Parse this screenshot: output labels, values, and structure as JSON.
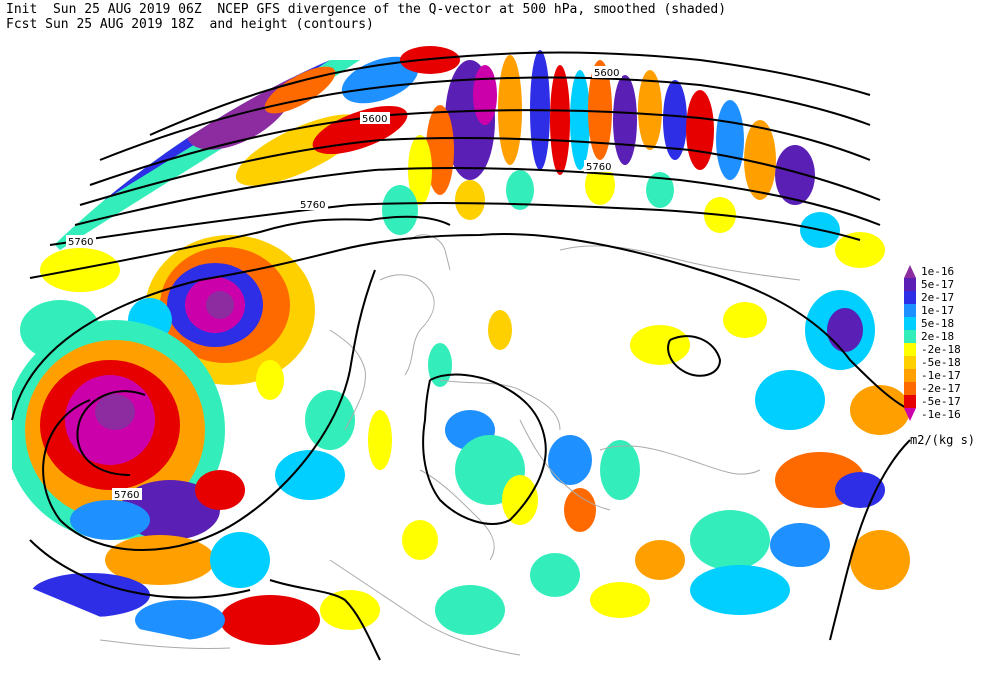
{
  "header": {
    "line1": "Init  Sun 25 AUG 2019 06Z  NCEP GFS divergence of the Q-vector at 500 hPa, smoothed (shaded)",
    "line2": "Fcst Sun 25 AUG 2019 18Z  and height (contours)"
  },
  "contour_labels": [
    "5600",
    "5600",
    "5760",
    "5760",
    "5760",
    "5760"
  ],
  "legend": {
    "units": "m2/(kg s)",
    "items": [
      {
        "label": "1e-16",
        "color": "#8c2ca0"
      },
      {
        "label": "5e-17",
        "color": "#5a1fb4"
      },
      {
        "label": "2e-17",
        "color": "#2e2ee6"
      },
      {
        "label": "1e-17",
        "color": "#1e90ff"
      },
      {
        "label": "5e-18",
        "color": "#00cfff"
      },
      {
        "label": "2e-18",
        "color": "#33eebb"
      },
      {
        "label": "-2e-18",
        "color": "#ffff00"
      },
      {
        "label": "-5e-18",
        "color": "#ffd000"
      },
      {
        "label": "-1e-17",
        "color": "#ffa000"
      },
      {
        "label": "-2e-17",
        "color": "#ff6a00"
      },
      {
        "label": "-5e-17",
        "color": "#e60000"
      },
      {
        "label": "-1e-16",
        "color": "#cc00aa"
      }
    ]
  },
  "colors": {
    "coast": "#aaaaaa",
    "contour": "#000000"
  }
}
